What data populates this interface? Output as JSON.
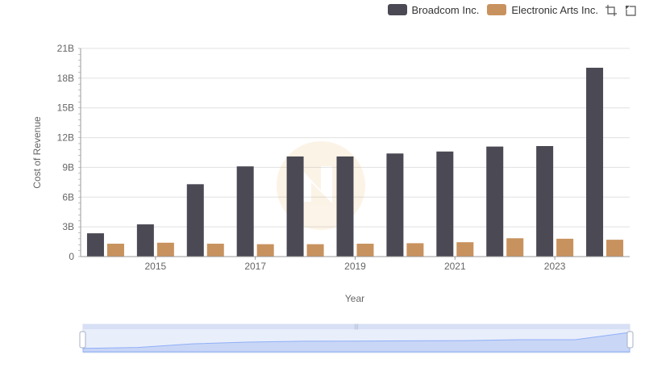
{
  "chart_data": {
    "type": "bar",
    "title": "",
    "xlabel": "Year",
    "ylabel": "Cost of Revenue",
    "x": [
      2014,
      2015,
      2016,
      2017,
      2018,
      2019,
      2020,
      2021,
      2022,
      2023,
      2024
    ],
    "x_tick_labels": [
      "2015",
      "2017",
      "2019",
      "2021",
      "2023"
    ],
    "y_tick_labels": [
      "0",
      "3B",
      "6B",
      "9B",
      "12B",
      "15B",
      "18B",
      "21B"
    ],
    "ylim": [
      0,
      21000000000
    ],
    "legend_position": "top-right",
    "grid": true,
    "series": [
      {
        "name": "Broadcom Inc.",
        "color": "#4a4954",
        "values": [
          2350000000,
          3250000000,
          7300000000,
          9100000000,
          10100000000,
          10100000000,
          10400000000,
          10600000000,
          11100000000,
          11150000000,
          19050000000
        ]
      },
      {
        "name": "Electronic Arts Inc.",
        "color": "#c8925e",
        "values": [
          1300000000,
          1400000000,
          1300000000,
          1250000000,
          1250000000,
          1300000000,
          1350000000,
          1450000000,
          1850000000,
          1800000000,
          1700000000
        ]
      }
    ]
  },
  "toolbox": {
    "zoom_icon": "zoom-icon",
    "restore_icon": "restore-icon"
  },
  "data_zoom": {
    "handle_label": "|||"
  }
}
